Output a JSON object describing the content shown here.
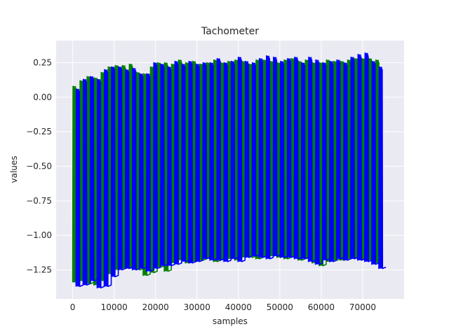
{
  "chart_data": {
    "type": "line",
    "title": "Tachometer",
    "xlabel": "samples",
    "ylabel": "values",
    "xlim": [
      -4000,
      80000
    ],
    "ylim": [
      -1.46,
      0.41
    ],
    "xticks": [
      0,
      10000,
      20000,
      30000,
      40000,
      50000,
      60000,
      70000
    ],
    "xtick_labels": [
      "0",
      "10000",
      "20000",
      "30000",
      "40000",
      "50000",
      "60000",
      "70000"
    ],
    "yticks": [
      0.25,
      0.0,
      -0.25,
      -0.5,
      -0.75,
      -1.0,
      -1.25
    ],
    "ytick_labels": [
      "0.25",
      "0.00",
      "−0.25",
      "−0.50",
      "−0.75",
      "−1.00",
      "−1.25"
    ],
    "grid": true,
    "background": "#eaeaf2",
    "series": [
      {
        "name": "green",
        "color": "#008000",
        "pulse_starts": [
          0,
          1700,
          3400,
          5100,
          6800,
          8500,
          10200,
          11900,
          13600,
          15300,
          17000,
          18700,
          20400,
          22100,
          23800,
          25500,
          27200,
          28900,
          30600,
          32300,
          34000,
          35700,
          37400,
          39100,
          40800,
          42500,
          44200,
          45900,
          47600,
          49300,
          51000,
          52700,
          54400,
          56100,
          57800,
          59500,
          61200,
          62900,
          64600,
          66300,
          68000,
          69700,
          71400,
          73100
        ],
        "high_values": [
          0.08,
          0.12,
          0.15,
          0.14,
          0.18,
          0.22,
          0.23,
          0.23,
          0.24,
          0.18,
          0.17,
          0.22,
          0.25,
          0.25,
          0.24,
          0.27,
          0.25,
          0.26,
          0.24,
          0.25,
          0.27,
          0.25,
          0.26,
          0.27,
          0.26,
          0.24,
          0.27,
          0.27,
          0.26,
          0.25,
          0.27,
          0.28,
          0.26,
          0.27,
          0.25,
          0.25,
          0.27,
          0.26,
          0.26,
          0.27,
          0.28,
          0.28,
          0.28,
          0.27
        ],
        "low_values": [
          -1.34,
          -1.33,
          -1.35,
          -1.36,
          -1.33,
          -1.28,
          -1.25,
          -1.24,
          -1.24,
          -1.25,
          -1.29,
          -1.27,
          -1.23,
          -1.26,
          -1.2,
          -1.18,
          -1.2,
          -1.19,
          -1.18,
          -1.17,
          -1.19,
          -1.18,
          -1.17,
          -1.18,
          -1.16,
          -1.16,
          -1.17,
          -1.16,
          -1.15,
          -1.16,
          -1.17,
          -1.16,
          -1.18,
          -1.17,
          -1.2,
          -1.22,
          -1.19,
          -1.18,
          -1.18,
          -1.17,
          -1.17,
          -1.18,
          -1.18,
          -1.2
        ]
      },
      {
        "name": "blue",
        "color": "#0000ff",
        "pulse_starts": [
          800,
          2500,
          4200,
          5900,
          7600,
          9300,
          11000,
          12700,
          14400,
          16100,
          17800,
          19500,
          21200,
          22900,
          24600,
          26300,
          28000,
          29700,
          31400,
          33100,
          34800,
          36500,
          38200,
          39900,
          41600,
          43300,
          45000,
          46700,
          48400,
          50100,
          51800,
          53500,
          55200,
          56900,
          58600,
          60300,
          62000,
          63700,
          65400,
          67100,
          68800,
          70500,
          72200,
          73900
        ],
        "high_values": [
          0.06,
          0.13,
          0.15,
          0.13,
          0.2,
          0.22,
          0.22,
          0.2,
          0.21,
          0.17,
          0.17,
          0.25,
          0.24,
          0.22,
          0.26,
          0.24,
          0.26,
          0.24,
          0.25,
          0.25,
          0.28,
          0.25,
          0.26,
          0.29,
          0.26,
          0.25,
          0.28,
          0.3,
          0.29,
          0.26,
          0.28,
          0.29,
          0.25,
          0.29,
          0.27,
          0.25,
          0.26,
          0.27,
          0.25,
          0.29,
          0.31,
          0.32,
          0.26,
          0.22
        ],
        "low_values": [
          -1.37,
          -1.36,
          -1.33,
          -1.38,
          -1.37,
          -1.3,
          -1.25,
          -1.24,
          -1.25,
          -1.24,
          -1.26,
          -1.24,
          -1.22,
          -1.22,
          -1.21,
          -1.19,
          -1.2,
          -1.19,
          -1.17,
          -1.18,
          -1.18,
          -1.19,
          -1.17,
          -1.19,
          -1.16,
          -1.15,
          -1.16,
          -1.17,
          -1.15,
          -1.16,
          -1.16,
          -1.17,
          -1.17,
          -1.19,
          -1.21,
          -1.18,
          -1.19,
          -1.17,
          -1.18,
          -1.17,
          -1.18,
          -1.19,
          -1.21,
          -1.24
        ]
      }
    ],
    "x_max": 76000
  }
}
